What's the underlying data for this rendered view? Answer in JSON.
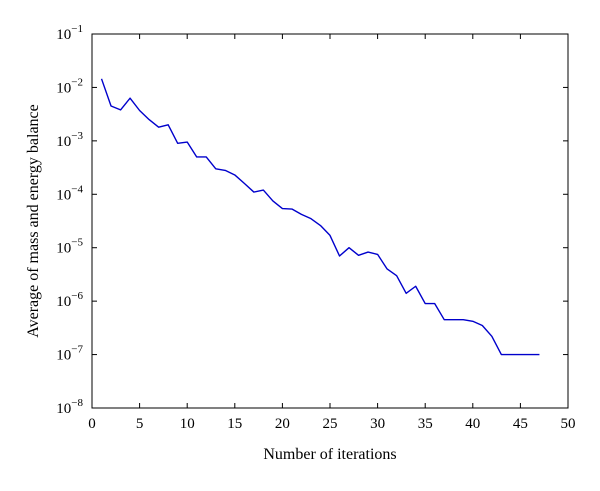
{
  "chart_data": {
    "type": "line",
    "title": "",
    "xlabel": "Number of iterations",
    "ylabel": "Average of mass and energy balance",
    "xlim": [
      0,
      50
    ],
    "ylim": [
      1e-08,
      0.1
    ],
    "yscale": "log",
    "x_ticks": [
      0,
      5,
      10,
      15,
      20,
      25,
      30,
      35,
      40,
      45,
      50
    ],
    "y_ticks": [
      {
        "value": 1e-08,
        "base": "10",
        "exp": "−8"
      },
      {
        "value": 1e-07,
        "base": "10",
        "exp": "−7"
      },
      {
        "value": 1e-06,
        "base": "10",
        "exp": "−6"
      },
      {
        "value": 1e-05,
        "base": "10",
        "exp": "−5"
      },
      {
        "value": 0.0001,
        "base": "10",
        "exp": "−4"
      },
      {
        "value": 0.001,
        "base": "10",
        "exp": "−3"
      },
      {
        "value": 0.01,
        "base": "10",
        "exp": "−2"
      },
      {
        "value": 0.1,
        "base": "10",
        "exp": "−1"
      }
    ],
    "grid": false,
    "legend": "none",
    "series": [
      {
        "color": "#0000cc",
        "x": [
          1,
          2,
          3,
          4,
          5,
          6,
          7,
          8,
          9,
          10,
          11,
          12,
          13,
          14,
          15,
          16,
          17,
          18,
          19,
          20,
          21,
          22,
          23,
          24,
          25,
          26,
          27,
          28,
          29,
          30,
          31,
          32,
          33,
          34,
          35,
          36,
          37,
          38,
          39,
          40,
          41,
          42,
          43,
          44,
          45,
          46,
          47
        ],
        "y": [
          0.0145,
          0.0045,
          0.0038,
          0.0063,
          0.0037,
          0.0025,
          0.0018,
          0.002,
          0.0009,
          0.00095,
          0.0005,
          0.0005,
          0.0003,
          0.00028,
          0.00023,
          0.00016,
          0.00011,
          0.00012,
          7.5e-05,
          5.4e-05,
          5.3e-05,
          4.2e-05,
          3.5e-05,
          2.6e-05,
          1.7e-05,
          7e-06,
          1e-05,
          7.2e-06,
          8.3e-06,
          7.5e-06,
          4e-06,
          3e-06,
          1.4e-06,
          1.9e-06,
          9e-07,
          9e-07,
          4.5e-07,
          4.5e-07,
          4.5e-07,
          4.2e-07,
          3.5e-07,
          2.2e-07,
          1e-07,
          1e-07,
          1e-07,
          1e-07,
          1e-07
        ]
      }
    ]
  }
}
